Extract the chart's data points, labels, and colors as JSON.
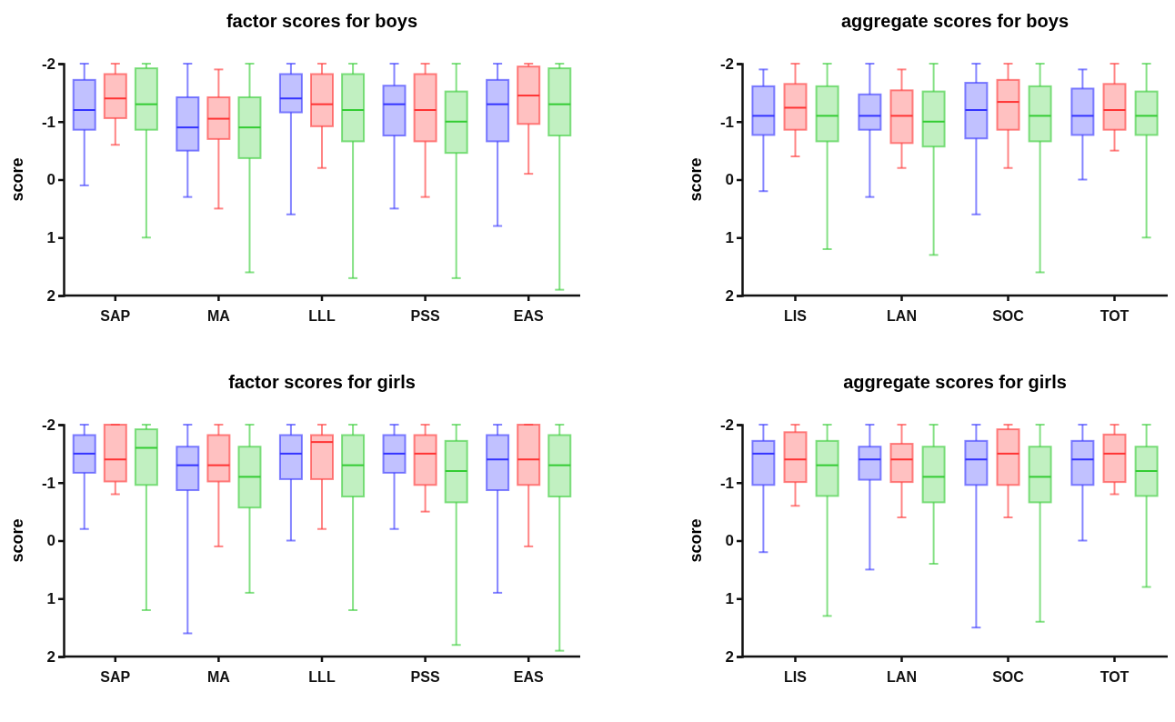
{
  "chart_data": [
    {
      "type": "box",
      "title": "factor scores for boys",
      "ylabel": "score",
      "categories": [
        "SAP",
        "MA",
        "LLL",
        "PSS",
        "EAS"
      ],
      "ylim": [
        2,
        -2
      ],
      "yticks": [
        -2,
        -1,
        0,
        1,
        2
      ],
      "series": [
        {
          "color": "#3333ff",
          "boxes": [
            {
              "low": -2,
              "q1": -1.72,
              "median": -1.2,
              "q3": -0.86,
              "high": 0.1
            },
            {
              "low": -2,
              "q1": -1.42,
              "median": -0.9,
              "q3": -0.5,
              "high": 0.3
            },
            {
              "low": -2,
              "q1": -1.82,
              "median": -1.4,
              "q3": -1.16,
              "high": 0.6
            },
            {
              "low": -2,
              "q1": -1.62,
              "median": -1.3,
              "q3": -0.76,
              "high": 0.5
            },
            {
              "low": -2,
              "q1": -1.72,
              "median": -1.3,
              "q3": -0.66,
              "high": 0.8
            }
          ]
        },
        {
          "color": "#ff3333",
          "boxes": [
            {
              "low": -2,
              "q1": -1.82,
              "median": -1.4,
              "q3": -1.06,
              "high": -0.6
            },
            {
              "low": -1.9,
              "q1": -1.42,
              "median": -1.05,
              "q3": -0.7,
              "high": 0.5
            },
            {
              "low": -2,
              "q1": -1.82,
              "median": -1.3,
              "q3": -0.92,
              "high": -0.2
            },
            {
              "low": -2,
              "q1": -1.82,
              "median": -1.2,
              "q3": -0.66,
              "high": 0.3
            },
            {
              "low": -2,
              "q1": -1.95,
              "median": -1.45,
              "q3": -0.96,
              "high": -0.1
            }
          ]
        },
        {
          "color": "#33cc33",
          "boxes": [
            {
              "low": -2,
              "q1": -1.92,
              "median": -1.3,
              "q3": -0.86,
              "high": 1.0
            },
            {
              "low": -2,
              "q1": -1.42,
              "median": -0.9,
              "q3": -0.37,
              "high": 1.6
            },
            {
              "low": -2,
              "q1": -1.82,
              "median": -1.2,
              "q3": -0.66,
              "high": 1.7
            },
            {
              "low": -2,
              "q1": -1.52,
              "median": -1.0,
              "q3": -0.46,
              "high": 1.7
            },
            {
              "low": -2,
              "q1": -1.92,
              "median": -1.3,
              "q3": -0.76,
              "high": 1.9
            }
          ]
        }
      ]
    },
    {
      "type": "box",
      "title": "aggregate scores for boys",
      "ylabel": "score",
      "categories": [
        "LIS",
        "LAN",
        "SOC",
        "TOT"
      ],
      "ylim": [
        2,
        -2
      ],
      "yticks": [
        -2,
        -1,
        0,
        1,
        2
      ],
      "series": [
        {
          "color": "#3333ff",
          "boxes": [
            {
              "low": -1.9,
              "q1": -1.61,
              "median": -1.1,
              "q3": -0.77,
              "high": 0.2
            },
            {
              "low": -2,
              "q1": -1.47,
              "median": -1.1,
              "q3": -0.86,
              "high": 0.3
            },
            {
              "low": -2,
              "q1": -1.67,
              "median": -1.2,
              "q3": -0.71,
              "high": 0.6
            },
            {
              "low": -1.9,
              "q1": -1.57,
              "median": -1.1,
              "q3": -0.77,
              "high": 0
            }
          ]
        },
        {
          "color": "#ff3333",
          "boxes": [
            {
              "low": -2,
              "q1": -1.65,
              "median": -1.24,
              "q3": -0.86,
              "high": -0.4
            },
            {
              "low": -1.9,
              "q1": -1.54,
              "median": -1.1,
              "q3": -0.63,
              "high": -0.2
            },
            {
              "low": -2,
              "q1": -1.72,
              "median": -1.34,
              "q3": -0.86,
              "high": -0.2
            },
            {
              "low": -2,
              "q1": -1.65,
              "median": -1.2,
              "q3": -0.86,
              "high": -0.5
            }
          ]
        },
        {
          "color": "#33cc33",
          "boxes": [
            {
              "low": -2,
              "q1": -1.61,
              "median": -1.1,
              "q3": -0.66,
              "high": 1.2
            },
            {
              "low": -2,
              "q1": -1.52,
              "median": -1.0,
              "q3": -0.57,
              "high": 1.3
            },
            {
              "low": -2,
              "q1": -1.61,
              "median": -1.1,
              "q3": -0.66,
              "high": 1.6
            },
            {
              "low": -2,
              "q1": -1.52,
              "median": -1.1,
              "q3": -0.77,
              "high": 1.0
            }
          ]
        }
      ]
    },
    {
      "type": "box",
      "title": "factor scores for girls",
      "ylabel": "score",
      "categories": [
        "SAP",
        "MA",
        "LLL",
        "PSS",
        "EAS"
      ],
      "ylim": [
        2,
        -2
      ],
      "yticks": [
        -2,
        -1,
        0,
        1,
        2
      ],
      "series": [
        {
          "color": "#3333ff",
          "boxes": [
            {
              "low": -2,
              "q1": -1.82,
              "median": -1.5,
              "q3": -1.17,
              "high": -0.2
            },
            {
              "low": -2,
              "q1": -1.62,
              "median": -1.3,
              "q3": -0.87,
              "high": 1.6
            },
            {
              "low": -2,
              "q1": -1.82,
              "median": -1.5,
              "q3": -1.06,
              "high": 0
            },
            {
              "low": -2,
              "q1": -1.82,
              "median": -1.5,
              "q3": -1.17,
              "high": -0.2
            },
            {
              "low": -2,
              "q1": -1.82,
              "median": -1.4,
              "q3": -0.87,
              "high": 0.9
            }
          ]
        },
        {
          "color": "#ff3333",
          "boxes": [
            {
              "low": -2,
              "q1": -2,
              "median": -1.4,
              "q3": -1.02,
              "high": -0.8
            },
            {
              "low": -2,
              "q1": -1.82,
              "median": -1.3,
              "q3": -1.02,
              "high": 0.1
            },
            {
              "low": -2,
              "q1": -1.82,
              "median": -1.7,
              "q3": -1.06,
              "high": -0.2
            },
            {
              "low": -2,
              "q1": -1.82,
              "median": -1.5,
              "q3": -0.96,
              "high": -0.5
            },
            {
              "low": -2,
              "q1": -2,
              "median": -1.4,
              "q3": -0.96,
              "high": 0.1
            }
          ]
        },
        {
          "color": "#33cc33",
          "boxes": [
            {
              "low": -2,
              "q1": -1.92,
              "median": -1.6,
              "q3": -0.96,
              "high": 1.2
            },
            {
              "low": -2,
              "q1": -1.62,
              "median": -1.1,
              "q3": -0.57,
              "high": 0.9
            },
            {
              "low": -2,
              "q1": -1.82,
              "median": -1.3,
              "q3": -0.76,
              "high": 1.2
            },
            {
              "low": -2,
              "q1": -1.72,
              "median": -1.2,
              "q3": -0.66,
              "high": 1.8
            },
            {
              "low": -2,
              "q1": -1.82,
              "median": -1.3,
              "q3": -0.76,
              "high": 1.9
            }
          ]
        }
      ]
    },
    {
      "type": "box",
      "title": "aggregate scores for girls",
      "ylabel": "score",
      "categories": [
        "LIS",
        "LAN",
        "SOC",
        "TOT"
      ],
      "ylim": [
        2,
        -2
      ],
      "yticks": [
        -2,
        -1,
        0,
        1,
        2
      ],
      "series": [
        {
          "color": "#3333ff",
          "boxes": [
            {
              "low": -2,
              "q1": -1.72,
              "median": -1.5,
              "q3": -0.96,
              "high": 0.2
            },
            {
              "low": -2,
              "q1": -1.62,
              "median": -1.4,
              "q3": -1.05,
              "high": 0.5
            },
            {
              "low": -2,
              "q1": -1.72,
              "median": -1.4,
              "q3": -0.96,
              "high": 1.5
            },
            {
              "low": -2,
              "q1": -1.72,
              "median": -1.4,
              "q3": -0.96,
              "high": 0
            }
          ]
        },
        {
          "color": "#ff3333",
          "boxes": [
            {
              "low": -2,
              "q1": -1.87,
              "median": -1.4,
              "q3": -1.01,
              "high": -0.6
            },
            {
              "low": -2,
              "q1": -1.67,
              "median": -1.4,
              "q3": -1.01,
              "high": -0.4
            },
            {
              "low": -2,
              "q1": -1.92,
              "median": -1.5,
              "q3": -0.96,
              "high": -0.4
            },
            {
              "low": -2,
              "q1": -1.83,
              "median": -1.5,
              "q3": -1.01,
              "high": -0.8
            }
          ]
        },
        {
          "color": "#33cc33",
          "boxes": [
            {
              "low": -2,
              "q1": -1.72,
              "median": -1.3,
              "q3": -0.77,
              "high": 1.3
            },
            {
              "low": -2,
              "q1": -1.62,
              "median": -1.1,
              "q3": -0.66,
              "high": 0.4
            },
            {
              "low": -2,
              "q1": -1.62,
              "median": -1.1,
              "q3": -0.66,
              "high": 1.4
            },
            {
              "low": -2,
              "q1": -1.62,
              "median": -1.2,
              "q3": -0.77,
              "high": 0.8
            }
          ]
        }
      ]
    }
  ]
}
